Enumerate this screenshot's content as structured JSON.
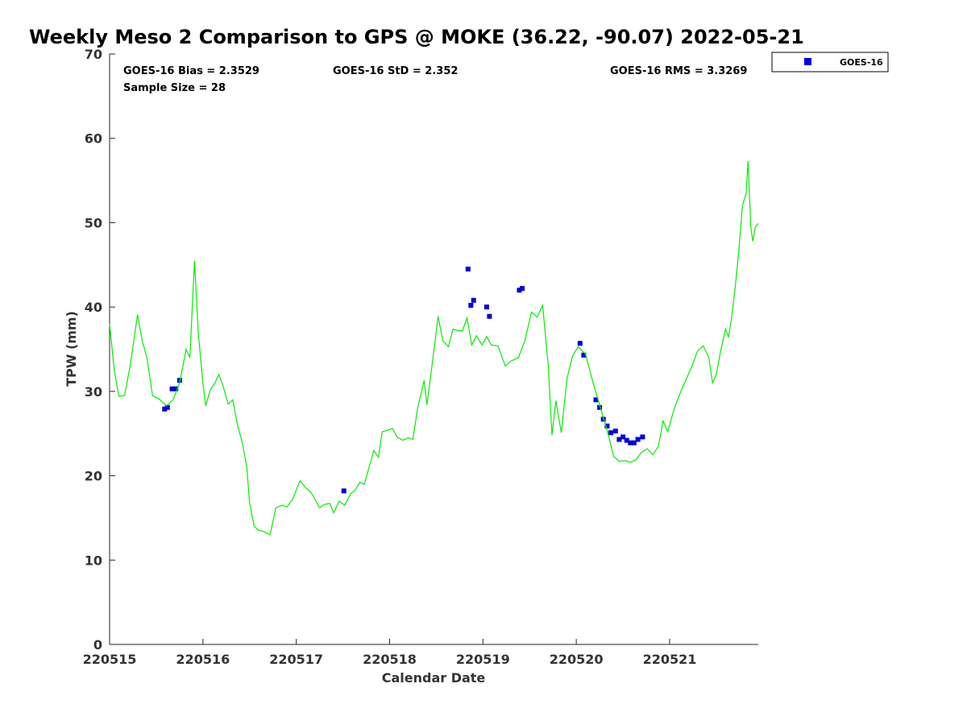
{
  "chart_data": {
    "type": "scatter",
    "title": "Weekly Meso 2 Comparison to GPS @ MOKE (36.22, -90.07) 2022-05-21",
    "xlabel": "Calendar Date",
    "ylabel": "TPW (mm)",
    "xlim": [
      220515,
      220521.95
    ],
    "ylim": [
      0,
      70
    ],
    "x_ticks": [
      {
        "value": 220515,
        "label": "220515"
      },
      {
        "value": 220516,
        "label": "220516"
      },
      {
        "value": 220517,
        "label": "220517"
      },
      {
        "value": 220518,
        "label": "220518"
      },
      {
        "value": 220519,
        "label": "220519"
      },
      {
        "value": 220520,
        "label": "220520"
      },
      {
        "value": 220521,
        "label": "220521"
      }
    ],
    "y_ticks": [
      0,
      10,
      20,
      30,
      40,
      50,
      60,
      70
    ],
    "grid": false,
    "legend": "top-right, outside plot",
    "stats": {
      "bias": "GOES-16 Bias = 2.3529",
      "std": "GOES-16 StD = 2.352",
      "rms": "GOES-16 RMS = 3.3269",
      "sample_size": "Sample Size = 28"
    },
    "series": [
      {
        "name": "GOES-16",
        "kind": "scatter",
        "marker": "square",
        "color": "#0000dd",
        "points": [
          [
            220515.59,
            27.9
          ],
          [
            220515.62,
            28.1
          ],
          [
            220515.67,
            30.3
          ],
          [
            220515.71,
            30.3
          ],
          [
            220515.75,
            31.3
          ],
          [
            220517.51,
            18.2
          ],
          [
            220518.84,
            44.5
          ],
          [
            220518.87,
            40.2
          ],
          [
            220518.9,
            40.8
          ],
          [
            220519.04,
            40.0
          ],
          [
            220519.07,
            38.9
          ],
          [
            220519.39,
            42.0
          ],
          [
            220519.42,
            42.2
          ],
          [
            220520.04,
            35.7
          ],
          [
            220520.08,
            34.3
          ],
          [
            220520.21,
            29.0
          ],
          [
            220520.25,
            28.1
          ],
          [
            220520.29,
            26.7
          ],
          [
            220520.33,
            25.9
          ],
          [
            220520.37,
            25.1
          ],
          [
            220520.42,
            25.3
          ],
          [
            220520.46,
            24.3
          ],
          [
            220520.5,
            24.6
          ],
          [
            220520.54,
            24.2
          ],
          [
            220520.58,
            23.9
          ],
          [
            220520.62,
            23.9
          ],
          [
            220520.66,
            24.3
          ],
          [
            220520.71,
            24.6
          ]
        ]
      },
      {
        "kind": "line",
        "color": "#00ee00",
        "points": [
          [
            220515.0,
            38.0
          ],
          [
            220515.05,
            32.5
          ],
          [
            220515.1,
            29.4
          ],
          [
            220515.16,
            29.5
          ],
          [
            220515.22,
            33.0
          ],
          [
            220515.3,
            39.1
          ],
          [
            220515.35,
            36.0
          ],
          [
            220515.4,
            34.0
          ],
          [
            220515.46,
            29.5
          ],
          [
            220515.53,
            29.1
          ],
          [
            220515.61,
            28.3
          ],
          [
            220515.68,
            29.0
          ],
          [
            220515.75,
            31.0
          ],
          [
            220515.82,
            35.0
          ],
          [
            220515.86,
            34.0
          ],
          [
            220515.91,
            45.5
          ],
          [
            220515.95,
            37.0
          ],
          [
            220516.0,
            31.0
          ],
          [
            220516.03,
            28.3
          ],
          [
            220516.08,
            30.2
          ],
          [
            220516.13,
            31.0
          ],
          [
            220516.17,
            32.0
          ],
          [
            220516.22,
            30.5
          ],
          [
            220516.27,
            28.5
          ],
          [
            220516.32,
            29.0
          ],
          [
            220516.37,
            26.0
          ],
          [
            220516.42,
            24.0
          ],
          [
            220516.47,
            21.0
          ],
          [
            220516.5,
            16.8
          ],
          [
            220516.55,
            14.0
          ],
          [
            220516.6,
            13.5
          ],
          [
            220516.65,
            13.4
          ],
          [
            220516.72,
            13.0
          ],
          [
            220516.78,
            16.2
          ],
          [
            220516.85,
            16.5
          ],
          [
            220516.9,
            16.3
          ],
          [
            220516.96,
            17.2
          ],
          [
            220517.04,
            19.4
          ],
          [
            220517.1,
            18.6
          ],
          [
            220517.16,
            18.0
          ],
          [
            220517.25,
            16.2
          ],
          [
            220517.3,
            16.6
          ],
          [
            220517.36,
            16.7
          ],
          [
            220517.4,
            15.6
          ],
          [
            220517.46,
            17.0
          ],
          [
            220517.52,
            16.5
          ],
          [
            220517.58,
            17.8
          ],
          [
            220517.63,
            18.3
          ],
          [
            220517.68,
            19.2
          ],
          [
            220517.73,
            19.0
          ],
          [
            220517.78,
            21.0
          ],
          [
            220517.83,
            23.0
          ],
          [
            220517.88,
            22.2
          ],
          [
            220517.92,
            25.2
          ],
          [
            220517.98,
            25.4
          ],
          [
            220518.03,
            25.6
          ],
          [
            220518.08,
            24.6
          ],
          [
            220518.14,
            24.2
          ],
          [
            220518.2,
            24.5
          ],
          [
            220518.25,
            24.3
          ],
          [
            220518.3,
            28.0
          ],
          [
            220518.37,
            31.3
          ],
          [
            220518.4,
            28.4
          ],
          [
            220518.46,
            33.6
          ],
          [
            220518.52,
            38.9
          ],
          [
            220518.57,
            36.0
          ],
          [
            220518.63,
            35.3
          ],
          [
            220518.68,
            37.4
          ],
          [
            220518.73,
            37.2
          ],
          [
            220518.78,
            37.2
          ],
          [
            220518.83,
            38.7
          ],
          [
            220518.88,
            35.5
          ],
          [
            220518.93,
            36.6
          ],
          [
            220518.99,
            35.5
          ],
          [
            220519.04,
            36.5
          ],
          [
            220519.09,
            35.5
          ],
          [
            220519.16,
            35.4
          ],
          [
            220519.24,
            33.0
          ],
          [
            220519.3,
            33.6
          ],
          [
            220519.38,
            34.0
          ],
          [
            220519.45,
            36.0
          ],
          [
            220519.52,
            39.4
          ],
          [
            220519.58,
            38.8
          ],
          [
            220519.64,
            40.2
          ],
          [
            220519.7,
            33.0
          ],
          [
            220519.74,
            24.8
          ],
          [
            220519.78,
            28.9
          ],
          [
            220519.84,
            25.1
          ],
          [
            220519.9,
            31.5
          ],
          [
            220519.96,
            34.2
          ],
          [
            220520.02,
            35.3
          ],
          [
            220520.1,
            34.4
          ],
          [
            220520.18,
            31.0
          ],
          [
            220520.26,
            28.0
          ],
          [
            220520.34,
            25.0
          ],
          [
            220520.4,
            22.3
          ],
          [
            220520.46,
            21.7
          ],
          [
            220520.52,
            21.8
          ],
          [
            220520.58,
            21.6
          ],
          [
            220520.64,
            21.9
          ],
          [
            220520.7,
            22.8
          ],
          [
            220520.76,
            23.2
          ],
          [
            220520.82,
            22.5
          ],
          [
            220520.88,
            23.5
          ],
          [
            220520.93,
            26.5
          ],
          [
            220520.98,
            25.2
          ],
          [
            220521.05,
            28.0
          ],
          [
            220521.12,
            30.0
          ],
          [
            220521.18,
            31.5
          ],
          [
            220521.24,
            33.0
          ],
          [
            220521.3,
            34.8
          ],
          [
            220521.36,
            35.4
          ],
          [
            220521.42,
            34.0
          ],
          [
            220521.46,
            31.0
          ],
          [
            220521.5,
            32.0
          ],
          [
            220521.55,
            35.0
          ],
          [
            220521.6,
            37.4
          ],
          [
            220521.63,
            36.4
          ],
          [
            220521.66,
            38.4
          ],
          [
            220521.7,
            42.0
          ],
          [
            220521.74,
            46.5
          ],
          [
            220521.78,
            52.0
          ],
          [
            220521.82,
            53.5
          ],
          [
            220521.84,
            57.3
          ],
          [
            220521.87,
            49.5
          ],
          [
            220521.89,
            47.8
          ],
          [
            220521.92,
            49.6
          ],
          [
            220521.95,
            49.9
          ]
        ]
      }
    ]
  }
}
